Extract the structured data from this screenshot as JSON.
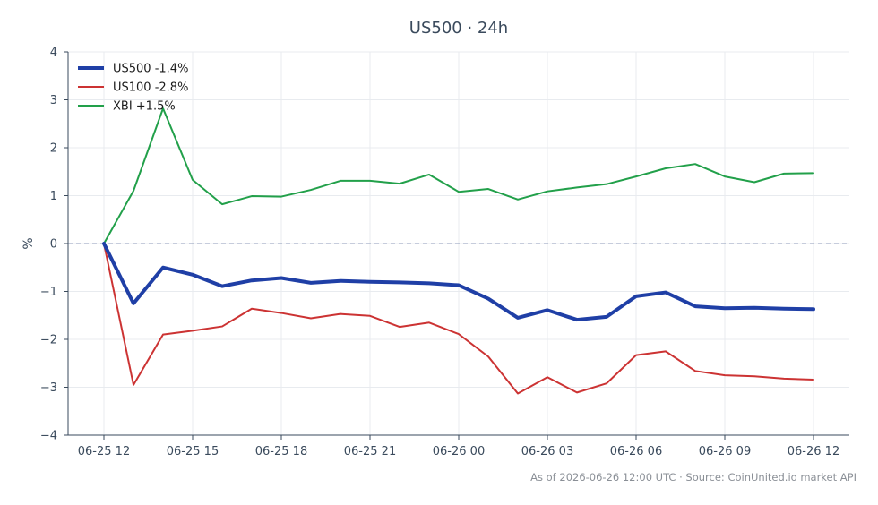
{
  "chart_data": {
    "type": "line",
    "title": "US500 · 24h",
    "ylabel": "%",
    "xlabel": "",
    "ylim": [
      -4,
      4
    ],
    "yticks": [
      -4,
      -3,
      -2,
      -1,
      0,
      1,
      2,
      3,
      4
    ],
    "ytick_labels": [
      "−4",
      "−3",
      "−2",
      "−1",
      "0",
      "1",
      "2",
      "3",
      "4"
    ],
    "xticks": [
      "06-25 12",
      "06-25 15",
      "06-25 18",
      "06-25 21",
      "06-26 00",
      "06-26 03",
      "06-26 06",
      "06-26 09",
      "06-26 12"
    ],
    "grid": true,
    "legend_position": "top-left",
    "zero_line": true,
    "x": [
      "06-25 12",
      "06-25 13",
      "06-25 14",
      "06-25 15",
      "06-25 16",
      "06-25 17",
      "06-25 18",
      "06-25 19",
      "06-25 20",
      "06-25 21",
      "06-25 22",
      "06-25 23",
      "06-26 00",
      "06-26 01",
      "06-26 02",
      "06-26 03",
      "06-26 04",
      "06-26 05",
      "06-26 06",
      "06-26 07",
      "06-26 08",
      "06-26 09",
      "06-26 10",
      "06-26 11",
      "06-26 12"
    ],
    "series": [
      {
        "name": "US500 -1.4%",
        "color": "#1f3fa6",
        "values": [
          0,
          -1.25,
          -0.5,
          -0.65,
          -0.89,
          -0.77,
          -0.72,
          -0.82,
          -0.78,
          -0.8,
          -0.81,
          -0.83,
          -0.87,
          -1.15,
          -1.55,
          -1.39,
          -1.59,
          -1.53,
          -1.1,
          -1.02,
          -1.31,
          -1.35,
          -1.34,
          -1.36,
          -1.37
        ]
      },
      {
        "name": "US100 -2.8%",
        "color": "#cc3333",
        "values": [
          0,
          -2.95,
          -1.9,
          -1.82,
          -1.73,
          -1.36,
          -1.45,
          -1.56,
          -1.47,
          -1.51,
          -1.74,
          -1.65,
          -1.89,
          -2.36,
          -3.13,
          -2.79,
          -3.11,
          -2.92,
          -2.33,
          -2.25,
          -2.66,
          -2.75,
          -2.77,
          -2.82,
          -2.84
        ]
      },
      {
        "name": "XBI +1.5%",
        "color": "#22a04a",
        "values": [
          0,
          1.1,
          2.82,
          1.33,
          0.82,
          0.99,
          0.98,
          1.12,
          1.31,
          1.31,
          1.25,
          1.44,
          1.08,
          1.14,
          0.92,
          1.09,
          1.17,
          1.24,
          1.4,
          1.57,
          1.66,
          1.4,
          1.28,
          1.46,
          1.47
        ]
      }
    ]
  },
  "footer": "As of 2026-06-26 12:00 UTC · Source: CoinUnited.io market API"
}
